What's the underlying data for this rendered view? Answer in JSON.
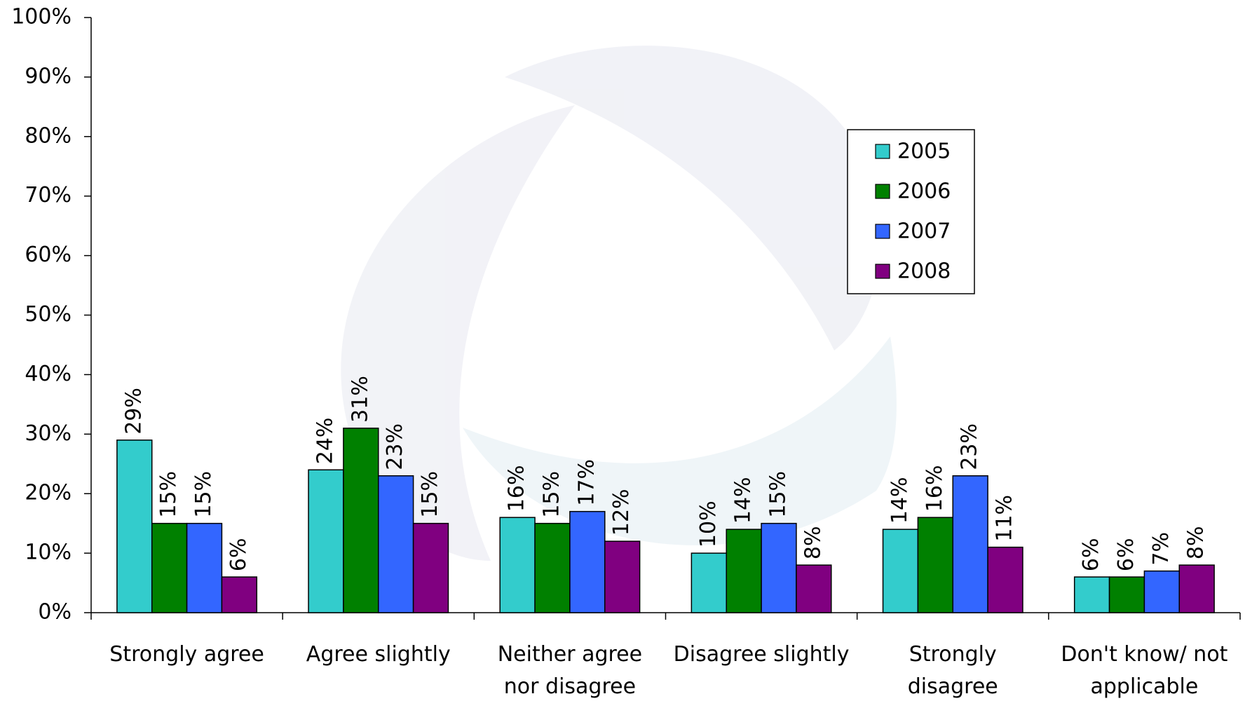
{
  "chart_data": {
    "type": "bar",
    "categories": [
      "Strongly agree",
      "Agree slightly",
      "Neither agree\nnor disagree",
      "Disagree slightly",
      "Strongly\ndisagree",
      "Don't know/ not\napplicable"
    ],
    "series": [
      {
        "name": "2005",
        "color": "#33cccc",
        "values": [
          29,
          24,
          16,
          10,
          14,
          6
        ],
        "value_labels": [
          "29%",
          "24%",
          "16%",
          "10%",
          "14%",
          "6%"
        ]
      },
      {
        "name": "2006",
        "color": "#008000",
        "values": [
          15,
          31,
          15,
          14,
          16,
          6
        ],
        "value_labels": [
          "15%",
          "31%",
          "15%",
          "14%",
          "16%",
          "6%"
        ]
      },
      {
        "name": "2007",
        "color": "#3366ff",
        "values": [
          15,
          23,
          17,
          15,
          23,
          7
        ],
        "value_labels": [
          "15%",
          "23%",
          "17%",
          "15%",
          "23%",
          "7%"
        ]
      },
      {
        "name": "2008",
        "color": "#800080",
        "values": [
          6,
          15,
          12,
          8,
          11,
          8
        ],
        "value_labels": [
          "6%",
          "15%",
          "12%",
          "8%",
          "11%",
          "8%"
        ]
      }
    ],
    "ylim": [
      0,
      100
    ],
    "yticks": [
      {
        "value": 0,
        "label": "0%"
      },
      {
        "value": 10,
        "label": "10%"
      },
      {
        "value": 20,
        "label": "20%"
      },
      {
        "value": 30,
        "label": "30%"
      },
      {
        "value": 40,
        "label": "40%"
      },
      {
        "value": 50,
        "label": "50%"
      },
      {
        "value": 60,
        "label": "60%"
      },
      {
        "value": 70,
        "label": "70%"
      },
      {
        "value": 80,
        "label": "80%"
      },
      {
        "value": 90,
        "label": "90%"
      },
      {
        "value": 100,
        "label": "100%"
      }
    ],
    "grid": false,
    "legend": "right"
  }
}
